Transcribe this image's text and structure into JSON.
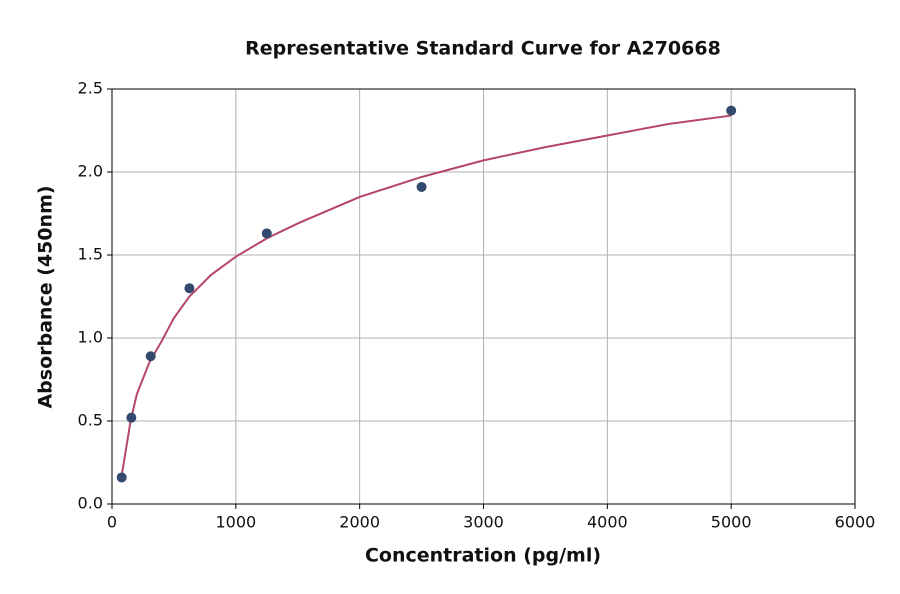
{
  "chart_data": {
    "type": "scatter",
    "title": "Representative Standard Curve for A270668",
    "x_label": "Concentration (pg/ml)",
    "y_label": "Absorbance (450nm)",
    "series": [
      {
        "color": "#34496e",
        "x": [
          78.125,
          156.25,
          312.5,
          625,
          1250,
          2500,
          5000
        ],
        "values": [
          0.16,
          0.52,
          0.89,
          1.3,
          1.63,
          1.91,
          2.37
        ]
      }
    ],
    "curve": {
      "color": "#b5466a",
      "x": [
        78.125,
        100,
        150,
        200,
        300,
        400,
        500,
        625,
        800,
        1000,
        1250,
        1500,
        2000,
        2500,
        3000,
        3500,
        4000,
        4500,
        5000
      ],
      "values": [
        0.17,
        0.27,
        0.5,
        0.66,
        0.85,
        0.98,
        1.12,
        1.25,
        1.38,
        1.49,
        1.6,
        1.69,
        1.85,
        1.97,
        2.07,
        2.15,
        2.22,
        2.29,
        2.34
      ]
    },
    "xlim": [
      0,
      6000
    ],
    "xticks": [
      0,
      1000,
      2000,
      3000,
      4000,
      5000,
      6000
    ],
    "ylim": [
      0,
      2.5
    ],
    "yticks": [
      {
        "value": 0,
        "label": "0.0"
      },
      0.5,
      {
        "value": 1,
        "label": "1.0"
      },
      1.5,
      {
        "value": 2,
        "label": "2.0"
      },
      2.5
    ],
    "grid": true
  }
}
